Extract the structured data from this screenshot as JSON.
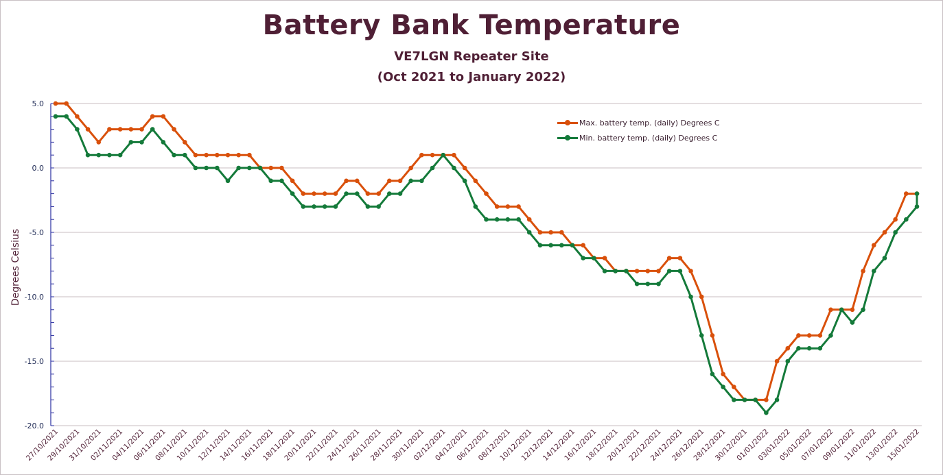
{
  "chart_data": {
    "type": "line",
    "title": "Battery Bank Temperature",
    "subtitle_1": "VE7LGN Repeater Site",
    "subtitle_2": "(Oct 2021 to January 2022)",
    "xlabel": "",
    "ylabel": "Degrees Celsius",
    "ylim": [
      -20,
      5
    ],
    "y_major_step": 5,
    "y_minor_step": 1,
    "y_tick_labels": [
      "5.0",
      "0.0",
      "-5.0",
      "-10.0",
      "-15.0",
      "-20.0"
    ],
    "grid": true,
    "legend_position": "top-right",
    "start_date": "27/10/2021",
    "x_tick_labels": [
      "27/10/2021",
      "29/10/2021",
      "31/10/2021",
      "02/11/2021",
      "04/11/2021",
      "06/11/2021",
      "08/11/2021",
      "10/11/2021",
      "12/11/2021",
      "14/11/2021",
      "16/11/2021",
      "18/11/2021",
      "20/11/2021",
      "22/11/2021",
      "24/11/2021",
      "26/11/2021",
      "28/11/2021",
      "30/11/2021",
      "02/12/2021",
      "04/12/2021",
      "06/12/2021",
      "08/12/2021",
      "10/12/2021",
      "12/12/2021",
      "14/12/2021",
      "16/12/2021",
      "18/12/2021",
      "20/12/2021",
      "22/12/2021",
      "24/12/2021",
      "26/12/2021",
      "28/12/2021",
      "30/12/2021",
      "01/01/2022",
      "03/01/2022",
      "05/01/2022",
      "07/01/2022",
      "09/01/2022",
      "11/01/2022",
      "13/01/2022",
      "15/01/2022"
    ],
    "series": [
      {
        "name": "Max. battery temp. (daily) Degrees C",
        "color": "#d9500b",
        "values": [
          5,
          5,
          4,
          3,
          2,
          3,
          3,
          3,
          3,
          4,
          4,
          3,
          2,
          1,
          1,
          1,
          1,
          1,
          1,
          0,
          0,
          0,
          -1,
          -2,
          -2,
          -2,
          -2,
          -1,
          -1,
          -2,
          -2,
          -1,
          -1,
          0,
          1,
          1,
          1,
          1,
          0,
          -1,
          -2,
          -3,
          -3,
          -3,
          -4,
          -5,
          -5,
          -5,
          -6,
          -6,
          -7,
          -7,
          -8,
          -8,
          -8,
          -8,
          -8,
          -7,
          -7,
          -8,
          -10,
          -13,
          -16,
          -17,
          -18,
          -18,
          -18,
          -15,
          -14,
          -13,
          -13,
          -13,
          -11,
          -11,
          -11,
          -8,
          -6,
          -5,
          -4,
          -2,
          -2
        ]
      },
      {
        "name": "Min. battery temp. (daily) Degrees C",
        "color": "#147a3a",
        "values": [
          4,
          4,
          3,
          1,
          1,
          1,
          1,
          2,
          2,
          3,
          2,
          1,
          1,
          0,
          0,
          0,
          -1,
          0,
          0,
          0,
          -1,
          -1,
          -2,
          -3,
          -3,
          -3,
          -3,
          -2,
          -2,
          -3,
          -3,
          -2,
          -2,
          -1,
          -1,
          0,
          1,
          0,
          -1,
          -3,
          -4,
          -4,
          -4,
          -4,
          -5,
          -6,
          -6,
          -6,
          -6,
          -7,
          -7,
          -8,
          -8,
          -8,
          -9,
          -9,
          -9,
          -8,
          -8,
          -10,
          -13,
          -16,
          -17,
          -18,
          -18,
          -18,
          -19,
          -18,
          -15,
          -14,
          -14,
          -14,
          -13,
          -11,
          -12,
          -11,
          -8,
          -7,
          -5,
          -4,
          -3
        ],
        "extra_final_value": -2
      }
    ]
  }
}
